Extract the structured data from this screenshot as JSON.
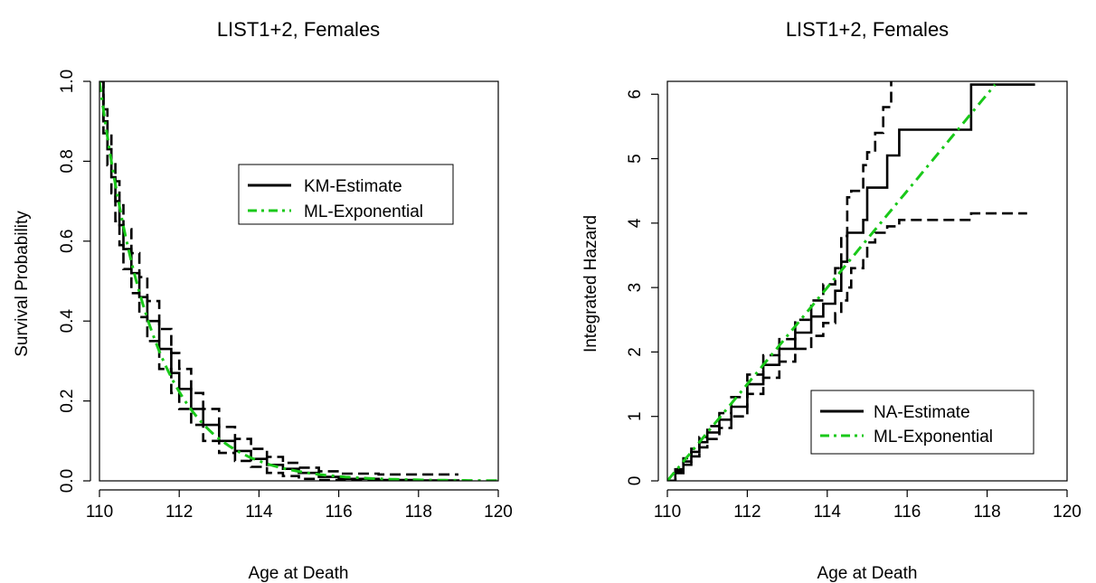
{
  "chart_data": [
    {
      "type": "line",
      "title": "LIST1+2, Females",
      "xlabel": "Age at Death",
      "ylabel": "Survival Probability",
      "xlim": [
        110,
        120
      ],
      "ylim": [
        0,
        1
      ],
      "xticks": [
        "110",
        "112",
        "114",
        "116",
        "118",
        "120"
      ],
      "yticks": [
        "0.0",
        "0.2",
        "0.4",
        "0.6",
        "0.8",
        "1.0"
      ],
      "grid": false,
      "legend_position": "upper-right",
      "series": [
        {
          "name": "KM-Estimate",
          "style": "solid-step",
          "color": "#000000",
          "x": [
            110,
            110.1,
            110.2,
            110.3,
            110.4,
            110.5,
            110.6,
            110.8,
            111.0,
            111.2,
            111.5,
            111.8,
            112.0,
            112.3,
            112.6,
            113.0,
            113.4,
            113.8,
            114.2,
            114.6,
            115.0,
            115.5,
            116.0,
            117.0,
            118.0,
            119.0
          ],
          "y": [
            1.0,
            0.9,
            0.83,
            0.76,
            0.7,
            0.64,
            0.58,
            0.52,
            0.46,
            0.4,
            0.33,
            0.27,
            0.23,
            0.18,
            0.14,
            0.1,
            0.075,
            0.055,
            0.04,
            0.03,
            0.02,
            0.01,
            0.005,
            0.002,
            0.001,
            0.0
          ]
        },
        {
          "name": "",
          "style": "dashed-step",
          "color": "#000000",
          "x": [
            110,
            110.1,
            110.2,
            110.3,
            110.4,
            110.5,
            110.6,
            110.8,
            111.0,
            111.2,
            111.5,
            111.8,
            112.0,
            112.3,
            112.6,
            113.0,
            113.4,
            113.8,
            114.2,
            114.6,
            115.0,
            115.5,
            116.0,
            117.0,
            118.0,
            119.0
          ],
          "y": [
            1.0,
            0.93,
            0.87,
            0.8,
            0.75,
            0.69,
            0.63,
            0.57,
            0.51,
            0.45,
            0.38,
            0.32,
            0.28,
            0.22,
            0.18,
            0.135,
            0.105,
            0.08,
            0.06,
            0.045,
            0.033,
            0.024,
            0.018,
            0.016,
            0.016,
            0.016
          ]
        },
        {
          "name": "",
          "style": "dashed-step",
          "color": "#000000",
          "x": [
            110,
            110.1,
            110.2,
            110.3,
            110.4,
            110.5,
            110.6,
            110.8,
            111.0,
            111.2,
            111.5,
            111.8,
            112.0,
            112.3,
            112.6,
            113.0,
            113.4,
            113.8,
            114.2,
            114.6,
            115.0,
            115.5,
            116.0,
            117.0,
            118.0,
            119.0
          ],
          "y": [
            1.0,
            0.87,
            0.79,
            0.72,
            0.65,
            0.59,
            0.53,
            0.47,
            0.41,
            0.35,
            0.28,
            0.22,
            0.18,
            0.14,
            0.1,
            0.07,
            0.05,
            0.035,
            0.02,
            0.012,
            0.005,
            0.002,
            0.001,
            0.0,
            0.0,
            0.0
          ]
        },
        {
          "name": "ML-Exponential",
          "style": "dash-dot",
          "color": "#19c819",
          "function": "exp(-0.75*(x-110))",
          "x_range": [
            110,
            120
          ]
        }
      ]
    },
    {
      "type": "line",
      "title": "LIST1+2, Females",
      "xlabel": "Age at Death",
      "ylabel": "Integrated Hazard",
      "xlim": [
        110,
        120
      ],
      "ylim": [
        0,
        6.2
      ],
      "xticks": [
        "110",
        "112",
        "114",
        "116",
        "118",
        "120"
      ],
      "yticks": [
        "0",
        "1",
        "2",
        "3",
        "4",
        "5",
        "6"
      ],
      "grid": false,
      "legend_position": "lower-right",
      "series": [
        {
          "name": "NA-Estimate",
          "style": "solid-step",
          "color": "#000000",
          "x": [
            110,
            110.2,
            110.4,
            110.6,
            110.8,
            111.0,
            111.3,
            111.6,
            112.0,
            112.4,
            112.8,
            113.2,
            113.6,
            113.9,
            114.2,
            114.35,
            114.5,
            114.6,
            114.9,
            115.0,
            115.2,
            115.5,
            115.8,
            116.5,
            117.6,
            119.2
          ],
          "y": [
            0,
            0.15,
            0.3,
            0.45,
            0.6,
            0.75,
            0.95,
            1.15,
            1.5,
            1.8,
            2.05,
            2.3,
            2.55,
            2.75,
            2.95,
            3.4,
            3.85,
            3.85,
            4.05,
            4.55,
            4.55,
            5.05,
            5.45,
            5.45,
            6.15,
            6.15
          ]
        },
        {
          "name": "",
          "style": "dashed-step",
          "color": "#000000",
          "x": [
            110,
            110.2,
            110.4,
            110.6,
            110.8,
            111.0,
            111.3,
            111.6,
            112.0,
            112.4,
            112.8,
            113.2,
            113.6,
            113.9,
            114.2,
            114.35,
            114.5,
            114.6,
            114.9,
            115.0,
            115.2,
            115.4,
            115.6
          ],
          "y": [
            0,
            0.18,
            0.35,
            0.5,
            0.68,
            0.85,
            1.05,
            1.3,
            1.65,
            1.95,
            2.2,
            2.5,
            2.8,
            3.05,
            3.3,
            3.8,
            4.4,
            4.5,
            4.9,
            5.1,
            5.4,
            5.8,
            6.2
          ]
        },
        {
          "name": "",
          "style": "dashed-step",
          "color": "#000000",
          "x": [
            110,
            110.2,
            110.4,
            110.6,
            110.8,
            111.0,
            111.3,
            111.6,
            112.0,
            112.4,
            112.8,
            113.2,
            113.6,
            113.9,
            114.2,
            114.35,
            114.5,
            114.6,
            114.9,
            115.0,
            115.2,
            115.5,
            115.8,
            116.5,
            117.6,
            118.2,
            119.0
          ],
          "y": [
            0,
            0.12,
            0.25,
            0.38,
            0.52,
            0.65,
            0.82,
            1.0,
            1.35,
            1.6,
            1.85,
            2.05,
            2.25,
            2.45,
            2.6,
            2.8,
            3.0,
            3.3,
            3.45,
            3.7,
            3.85,
            3.95,
            4.05,
            4.05,
            4.15,
            4.15,
            4.15
          ]
        },
        {
          "name": "ML-Exponential",
          "style": "dash-dot",
          "color": "#19c819",
          "function": "0.75*(x-110)",
          "x_range": [
            110,
            118.2
          ]
        }
      ]
    }
  ]
}
